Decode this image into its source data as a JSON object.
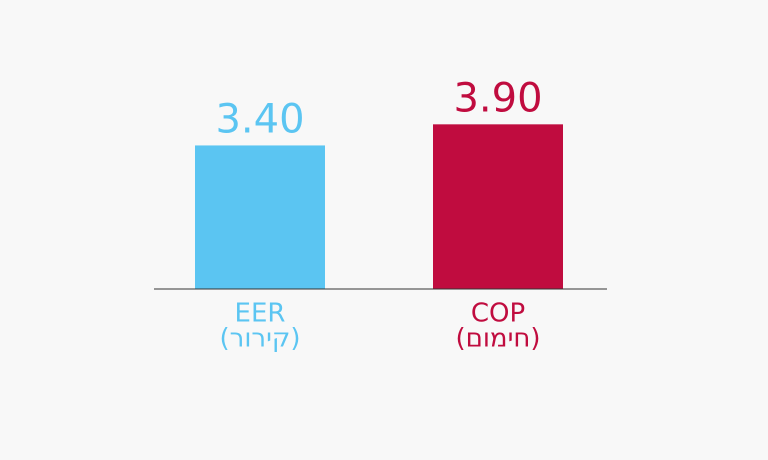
{
  "chart_data": {
    "type": "bar",
    "categories": [
      [
        "EER",
        "(קירור)"
      ],
      [
        "COP",
        "(חימום)"
      ]
    ],
    "values": [
      3.4,
      3.9
    ],
    "value_labels": [
      "3.40",
      "3.90"
    ],
    "colors": [
      "#5bc5f2",
      "#c00c3f"
    ],
    "ylim": [
      0,
      4.5
    ]
  }
}
